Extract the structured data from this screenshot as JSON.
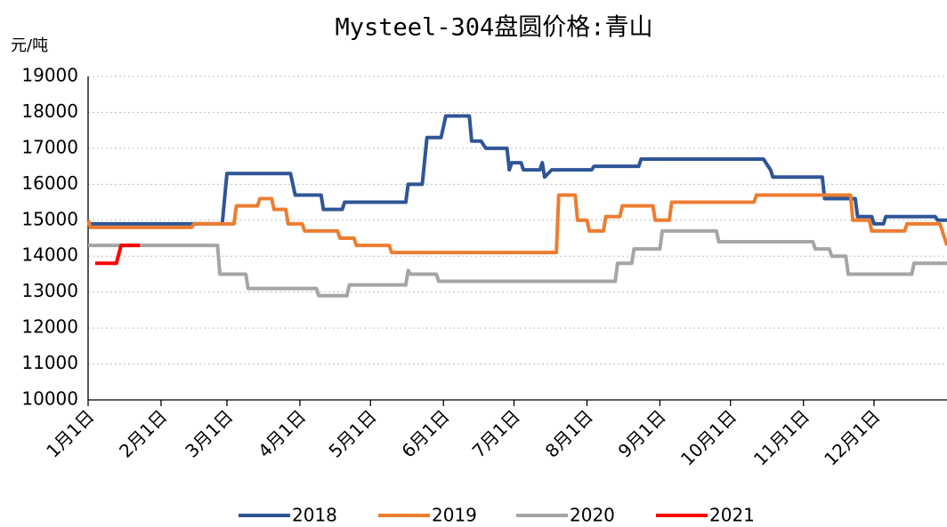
{
  "chart_data": {
    "type": "line",
    "title": "Mysteel-304盘圆价格:青山",
    "y_label": "元/吨",
    "xlim": [
      0,
      365
    ],
    "xticks": [
      {
        "value": 0,
        "label": "1月1日"
      },
      {
        "value": 31,
        "label": "2月1日"
      },
      {
        "value": 59,
        "label": "3月1日"
      },
      {
        "value": 90,
        "label": "4月1日"
      },
      {
        "value": 120,
        "label": "5月1日"
      },
      {
        "value": 151,
        "label": "6月1日"
      },
      {
        "value": 181,
        "label": "7月1日"
      },
      {
        "value": 212,
        "label": "8月1日"
      },
      {
        "value": 243,
        "label": "9月1日"
      },
      {
        "value": 273,
        "label": "10月1日"
      },
      {
        "value": 304,
        "label": "11月1日"
      },
      {
        "value": 334,
        "label": "12月1日"
      }
    ],
    "ylim": [
      10000,
      19000
    ],
    "yticks": [
      10000,
      11000,
      12000,
      13000,
      14000,
      15000,
      16000,
      17000,
      18000,
      19000
    ],
    "grid": true,
    "legend": "bottom",
    "series": [
      {
        "name": "2018",
        "color": "#2f5597",
        "x": [
          0,
          57,
          59,
          86,
          88,
          99,
          100,
          108,
          109,
          135,
          136,
          142,
          144,
          150,
          151,
          152,
          162,
          163,
          167,
          169,
          178,
          179,
          180,
          184,
          185,
          192,
          193,
          194,
          197,
          214,
          215,
          234,
          235,
          287,
          290,
          291,
          312,
          313,
          326,
          327,
          333,
          334,
          338,
          339,
          360,
          361,
          365
        ],
        "values": [
          14900,
          14900,
          16300,
          16300,
          15700,
          15700,
          15300,
          15300,
          15500,
          15500,
          16000,
          16000,
          17300,
          17300,
          17600,
          17900,
          17900,
          17200,
          17200,
          17000,
          17000,
          16400,
          16600,
          16600,
          16400,
          16400,
          16600,
          16200,
          16400,
          16400,
          16500,
          16500,
          16700,
          16700,
          16400,
          16200,
          16200,
          15600,
          15600,
          15100,
          15100,
          14900,
          14900,
          15100,
          15100,
          15000,
          15000
        ]
      },
      {
        "name": "2019",
        "color": "#ed7d31",
        "x": [
          0,
          1,
          44,
          45,
          62,
          63,
          72,
          73,
          78,
          79,
          84,
          85,
          91,
          92,
          106,
          107,
          113,
          114,
          128,
          129,
          199,
          200,
          207,
          208,
          212,
          213,
          219,
          220,
          226,
          227,
          240,
          241,
          247,
          248,
          283,
          284,
          324,
          325,
          332,
          333,
          347,
          348,
          362,
          365
        ],
        "values": [
          15000,
          14800,
          14800,
          14900,
          14900,
          15400,
          15400,
          15600,
          15600,
          15300,
          15300,
          14900,
          14900,
          14700,
          14700,
          14500,
          14500,
          14300,
          14300,
          14100,
          14100,
          15700,
          15700,
          15000,
          15000,
          14700,
          14700,
          15100,
          15100,
          15400,
          15400,
          15000,
          15000,
          15500,
          15500,
          15700,
          15700,
          15000,
          15000,
          14700,
          14700,
          14900,
          14900,
          14300
        ]
      },
      {
        "name": "2020",
        "color": "#a5a5a5",
        "x": [
          0,
          55,
          56,
          67,
          68,
          97,
          98,
          110,
          111,
          135,
          136,
          137,
          148,
          149,
          224,
          225,
          231,
          232,
          243,
          244,
          267,
          268,
          308,
          309,
          315,
          316,
          322,
          323,
          350,
          351,
          365
        ],
        "values": [
          14300,
          14300,
          13500,
          13500,
          13100,
          13100,
          12900,
          12900,
          13200,
          13200,
          13600,
          13500,
          13500,
          13300,
          13300,
          13800,
          13800,
          14200,
          14200,
          14700,
          14700,
          14400,
          14400,
          14200,
          14200,
          14000,
          14000,
          13500,
          13500,
          13800,
          13800
        ]
      },
      {
        "name": "2021",
        "color": "#ff0000",
        "x": [
          3,
          12,
          14,
          22
        ],
        "values": [
          13800,
          13800,
          14300,
          14300
        ]
      }
    ]
  }
}
